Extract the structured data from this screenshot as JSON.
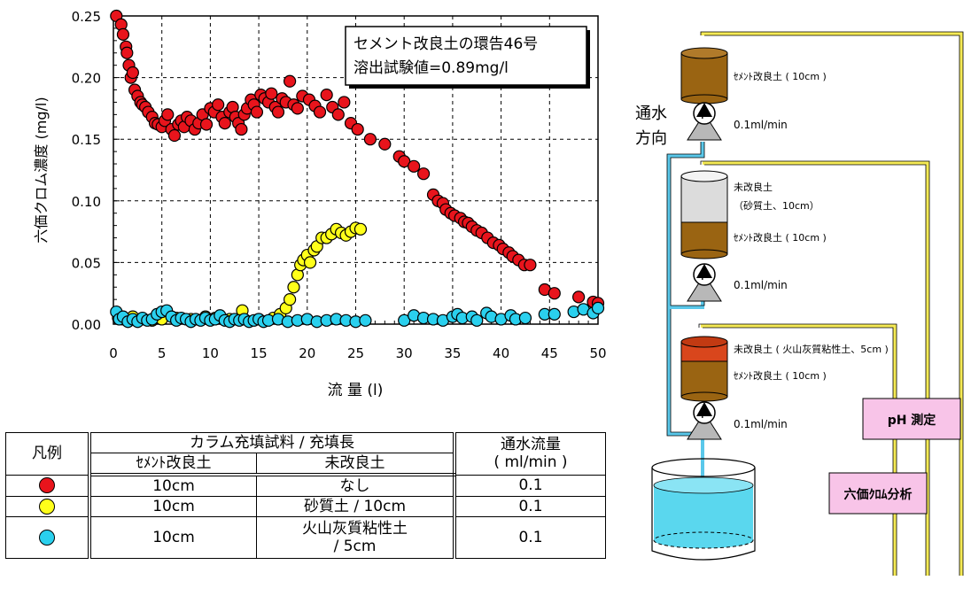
{
  "chart_data": {
    "type": "scatter",
    "title": "",
    "xlabel": "流 量 (l)",
    "ylabel": "六価クロム濃度 (mg/l)",
    "xlim": [
      0,
      50
    ],
    "ylim": [
      0,
      0.25
    ],
    "x_ticks": [
      "0",
      "5",
      "10",
      "15",
      "20",
      "25",
      "30",
      "35",
      "40",
      "45",
      "50"
    ],
    "y_ticks": [
      "0.00",
      "0.05",
      "0.10",
      "0.15",
      "0.20",
      "0.25"
    ],
    "grid": true,
    "annotation": {
      "line1": "セメント改良土の環告46号",
      "line2": "溶出試験値=0.89mg/l"
    },
    "series": [
      {
        "color": "#e8141c",
        "points": [
          [
            0.3,
            0.25
          ],
          [
            0.8,
            0.243
          ],
          [
            1.0,
            0.235
          ],
          [
            1.3,
            0.225
          ],
          [
            1.4,
            0.22
          ],
          [
            1.6,
            0.21
          ],
          [
            1.8,
            0.2
          ],
          [
            2.0,
            0.204
          ],
          [
            2.2,
            0.19
          ],
          [
            2.5,
            0.185
          ],
          [
            2.8,
            0.18
          ],
          [
            3.0,
            0.178
          ],
          [
            3.3,
            0.176
          ],
          [
            3.6,
            0.172
          ],
          [
            4.0,
            0.168
          ],
          [
            4.3,
            0.163
          ],
          [
            4.6,
            0.162
          ],
          [
            5.0,
            0.16
          ],
          [
            5.3,
            0.165
          ],
          [
            5.6,
            0.17
          ],
          [
            6.0,
            0.158
          ],
          [
            6.3,
            0.153
          ],
          [
            6.7,
            0.162
          ],
          [
            7.0,
            0.165
          ],
          [
            7.3,
            0.16
          ],
          [
            7.6,
            0.168
          ],
          [
            8.0,
            0.165
          ],
          [
            8.4,
            0.158
          ],
          [
            8.8,
            0.163
          ],
          [
            9.2,
            0.17
          ],
          [
            9.6,
            0.162
          ],
          [
            10.0,
            0.175
          ],
          [
            10.4,
            0.172
          ],
          [
            10.8,
            0.178
          ],
          [
            11.2,
            0.168
          ],
          [
            11.5,
            0.163
          ],
          [
            12.0,
            0.172
          ],
          [
            12.3,
            0.176
          ],
          [
            12.6,
            0.168
          ],
          [
            12.9,
            0.163
          ],
          [
            13.2,
            0.158
          ],
          [
            13.5,
            0.17
          ],
          [
            13.8,
            0.175
          ],
          [
            14.2,
            0.182
          ],
          [
            14.5,
            0.178
          ],
          [
            14.8,
            0.172
          ],
          [
            15.2,
            0.186
          ],
          [
            15.6,
            0.183
          ],
          [
            16.0,
            0.18
          ],
          [
            16.3,
            0.187
          ],
          [
            16.7,
            0.176
          ],
          [
            17.0,
            0.172
          ],
          [
            17.4,
            0.183
          ],
          [
            17.8,
            0.18
          ],
          [
            18.2,
            0.197
          ],
          [
            18.6,
            0.178
          ],
          [
            19.0,
            0.175
          ],
          [
            19.5,
            0.185
          ],
          [
            20.2,
            0.182
          ],
          [
            20.8,
            0.177
          ],
          [
            21.3,
            0.172
          ],
          [
            22.0,
            0.186
          ],
          [
            22.6,
            0.176
          ],
          [
            23.2,
            0.17
          ],
          [
            23.8,
            0.18
          ],
          [
            24.5,
            0.163
          ],
          [
            25.2,
            0.158
          ],
          [
            26.5,
            0.15
          ],
          [
            28.0,
            0.146
          ],
          [
            29.5,
            0.136
          ],
          [
            30.0,
            0.132
          ],
          [
            31.0,
            0.128
          ],
          [
            32.0,
            0.122
          ],
          [
            33.0,
            0.105
          ],
          [
            33.5,
            0.1
          ],
          [
            34.0,
            0.098
          ],
          [
            34.3,
            0.093
          ],
          [
            34.8,
            0.09
          ],
          [
            35.2,
            0.088
          ],
          [
            35.8,
            0.086
          ],
          [
            36.2,
            0.083
          ],
          [
            36.6,
            0.082
          ],
          [
            37.0,
            0.079
          ],
          [
            37.5,
            0.076
          ],
          [
            38.0,
            0.074
          ],
          [
            38.6,
            0.07
          ],
          [
            39.2,
            0.066
          ],
          [
            39.8,
            0.064
          ],
          [
            40.2,
            0.061
          ],
          [
            40.8,
            0.058
          ],
          [
            41.2,
            0.055
          ],
          [
            41.8,
            0.052
          ],
          [
            42.4,
            0.048
          ],
          [
            43.0,
            0.048
          ],
          [
            44.5,
            0.028
          ],
          [
            45.5,
            0.025
          ],
          [
            48.0,
            0.022
          ],
          [
            49.5,
            0.018
          ],
          [
            50.0,
            0.017
          ]
        ]
      },
      {
        "color": "#ffff1a",
        "points": [
          [
            0.5,
            0.005
          ],
          [
            1.0,
            0.004
          ],
          [
            2.0,
            0.006
          ],
          [
            3.0,
            0.004
          ],
          [
            4.0,
            0.003
          ],
          [
            5.0,
            0.004
          ],
          [
            6.5,
            0.005
          ],
          [
            8.0,
            0.004
          ],
          [
            9.5,
            0.006
          ],
          [
            10.5,
            0.005
          ],
          [
            12.0,
            0.004
          ],
          [
            13.3,
            0.011
          ],
          [
            15.0,
            0.004
          ],
          [
            16.5,
            0.005
          ],
          [
            17.2,
            0.008
          ],
          [
            17.8,
            0.013
          ],
          [
            18.2,
            0.02
          ],
          [
            18.6,
            0.03
          ],
          [
            19.0,
            0.04
          ],
          [
            19.3,
            0.048
          ],
          [
            19.6,
            0.052
          ],
          [
            20.0,
            0.056
          ],
          [
            20.3,
            0.05
          ],
          [
            20.7,
            0.06
          ],
          [
            21.0,
            0.063
          ],
          [
            21.5,
            0.07
          ],
          [
            22.0,
            0.07
          ],
          [
            22.5,
            0.073
          ],
          [
            23.0,
            0.077
          ],
          [
            23.5,
            0.074
          ],
          [
            24.0,
            0.072
          ],
          [
            24.5,
            0.075
          ],
          [
            25.0,
            0.078
          ],
          [
            25.5,
            0.077
          ]
        ]
      },
      {
        "color": "#2ad0ee",
        "points": [
          [
            0.3,
            0.01
          ],
          [
            0.6,
            0.004
          ],
          [
            1.0,
            0.006
          ],
          [
            1.5,
            0.002
          ],
          [
            2.0,
            0.004
          ],
          [
            2.5,
            0.002
          ],
          [
            3.0,
            0.005
          ],
          [
            3.5,
            0.003
          ],
          [
            4.0,
            0.004
          ],
          [
            4.5,
            0.008
          ],
          [
            5.0,
            0.01
          ],
          [
            5.5,
            0.011
          ],
          [
            6.0,
            0.006
          ],
          [
            6.5,
            0.003
          ],
          [
            7.0,
            0.005
          ],
          [
            7.5,
            0.004
          ],
          [
            8.0,
            0.002
          ],
          [
            8.5,
            0.004
          ],
          [
            9.0,
            0.003
          ],
          [
            9.5,
            0.005
          ],
          [
            10.0,
            0.003
          ],
          [
            10.5,
            0.004
          ],
          [
            11.0,
            0.007
          ],
          [
            11.5,
            0.003
          ],
          [
            12.0,
            0.002
          ],
          [
            12.5,
            0.004
          ],
          [
            13.0,
            0.003
          ],
          [
            13.5,
            0.004
          ],
          [
            14.0,
            0.002
          ],
          [
            14.5,
            0.003
          ],
          [
            15.0,
            0.004
          ],
          [
            15.5,
            0.002
          ],
          [
            16.0,
            0.003
          ],
          [
            17.0,
            0.004
          ],
          [
            18.0,
            0.002
          ],
          [
            19.0,
            0.003
          ],
          [
            20.0,
            0.004
          ],
          [
            21.0,
            0.002
          ],
          [
            22.0,
            0.003
          ],
          [
            23.0,
            0.004
          ],
          [
            24.0,
            0.003
          ],
          [
            25.0,
            0.002
          ],
          [
            26.0,
            0.003
          ],
          [
            30.0,
            0.003
          ],
          [
            31.0,
            0.007
          ],
          [
            32.0,
            0.005
          ],
          [
            33.0,
            0.004
          ],
          [
            34.0,
            0.003
          ],
          [
            35.0,
            0.006
          ],
          [
            35.5,
            0.008
          ],
          [
            36.0,
            0.005
          ],
          [
            37.0,
            0.006
          ],
          [
            37.5,
            0.003
          ],
          [
            38.5,
            0.009
          ],
          [
            39.0,
            0.006
          ],
          [
            40.0,
            0.004
          ],
          [
            41.0,
            0.007
          ],
          [
            41.5,
            0.004
          ],
          [
            42.5,
            0.005
          ],
          [
            44.5,
            0.008
          ],
          [
            45.5,
            0.008
          ],
          [
            47.5,
            0.01
          ],
          [
            48.5,
            0.012
          ],
          [
            49.5,
            0.009
          ],
          [
            50.0,
            0.013
          ]
        ]
      }
    ]
  },
  "legend_table": {
    "header_legend": "凡例",
    "header_sample": "カラム充填試料 / 充填長",
    "header_flow_1": "通水流量",
    "header_flow_2": "( ml/min )",
    "sub_cement": "ｾﾒﾝﾄ改良土",
    "sub_unimproved": "未改良土",
    "rows": [
      {
        "color": "#e8141c",
        "cement": "10cm",
        "unimproved": "なし",
        "flow": "0.1"
      },
      {
        "color": "#ffff1a",
        "cement": "10cm",
        "unimproved": "砂質土 / 10cm",
        "flow": "0.1"
      },
      {
        "color": "#2ad0ee",
        "cement": "10cm",
        "unimproved_1": "火山灰質粘性土",
        "unimproved_2": "/ 5cm",
        "flow": "0.1"
      }
    ]
  },
  "diagram": {
    "flow_dir_1": "通水",
    "flow_dir_2": "方向",
    "col1_label": "ｾﾒﾝﾄ改良土 ( 10cm )",
    "col2_top_1": "未改良土",
    "col2_top_2": "（砂質土、10cm）",
    "col2_bottom": "ｾﾒﾝﾄ改良土 ( 10cm )",
    "col3_top": "未改良土 ( 火山灰質粘性土、5cm )",
    "col3_bottom": "ｾﾒﾝﾄ改良土 ( 10cm )",
    "pump_symbol": "P",
    "pump_rate": "0.1ml/min",
    "ph_box": "pH 測定",
    "cr_box": "六価ｸﾛﾑ分析",
    "colors": {
      "wire": "#f5ea55",
      "pipe": "#5ac8ea",
      "box": "#f8c4e8",
      "soil": "#9a6412",
      "red_soil": "#d9461c",
      "water": "#5ad7ee"
    }
  }
}
